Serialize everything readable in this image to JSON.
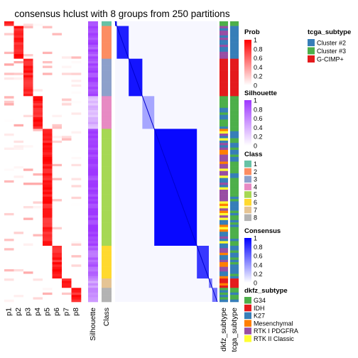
{
  "chart_data": {
    "type": "heatmap",
    "title": "consensus hclust with 8 groups from 250 partitions",
    "n_samples": 120,
    "prob_columns": [
      "p1",
      "p2",
      "p3",
      "p4",
      "p5",
      "p6",
      "p7",
      "p8"
    ],
    "annotation_columns": [
      "Silhouette",
      "Class"
    ],
    "right_annotation_columns": [
      "dkfz_subtype",
      "tcga_subtype"
    ],
    "class_colors": [
      "#66C2A5",
      "#FC8D62",
      "#8DA0CB",
      "#E78AC3",
      "#A6D854",
      "#FFD92F",
      "#E5C494",
      "#B3B3B3"
    ],
    "groups": [
      {
        "cls": 1,
        "n": 2,
        "sil": 0.95
      },
      {
        "cls": 2,
        "n": 14,
        "sil": 0.88
      },
      {
        "cls": 3,
        "n": 16,
        "sil": 0.92
      },
      {
        "cls": 4,
        "n": 14,
        "sil": 0.35
      },
      {
        "cls": 5,
        "n": 50,
        "sil": 0.97
      },
      {
        "cls": 6,
        "n": 14,
        "sil": 0.78
      },
      {
        "cls": 7,
        "n": 4,
        "sil": 0.5
      },
      {
        "cls": 8,
        "n": 6,
        "sil": 0.55
      }
    ],
    "legends": {
      "prob": {
        "title": "Prob",
        "ticks": [
          "1",
          "0.8",
          "0.6",
          "0.4",
          "0.2",
          "0"
        ],
        "colors": [
          "#FF0000",
          "#FFFFFF"
        ]
      },
      "silhouette": {
        "title": "Silhouette",
        "ticks": [
          "1",
          "0.8",
          "0.6",
          "0.4",
          "0.2",
          "0"
        ],
        "colors": [
          "#9E37FF",
          "#FFFFFF"
        ]
      },
      "class": {
        "title": "Class",
        "labels": [
          "1",
          "2",
          "3",
          "4",
          "5",
          "6",
          "7",
          "8"
        ]
      },
      "consensus": {
        "title": "Consensus",
        "ticks": [
          "1",
          "0.8",
          "0.6",
          "0.4",
          "0.2",
          "0"
        ],
        "colors": [
          "#0000FF",
          "#FFFFFF"
        ]
      },
      "dkfz_subtype": {
        "title": "dkfz_subtype",
        "items": [
          {
            "label": "G34",
            "color": "#4DAF4A"
          },
          {
            "label": "IDH",
            "color": "#E41A1C"
          },
          {
            "label": "K27",
            "color": "#377EB8"
          },
          {
            "label": "Mesenchymal",
            "color": "#FF7F00"
          },
          {
            "label": "RTK I PDGFRA",
            "color": "#984EA3"
          },
          {
            "label": "RTK II Classic",
            "color": "#FFFF33"
          }
        ]
      },
      "tcga_subtype": {
        "title": "tcga_subtype",
        "items": [
          {
            "label": "Cluster #2",
            "color": "#377EB8"
          },
          {
            "label": "Cluster #3",
            "color": "#4DAF4A"
          },
          {
            "label": "G-CIMP+",
            "color": "#E41A1C"
          }
        ]
      }
    }
  }
}
